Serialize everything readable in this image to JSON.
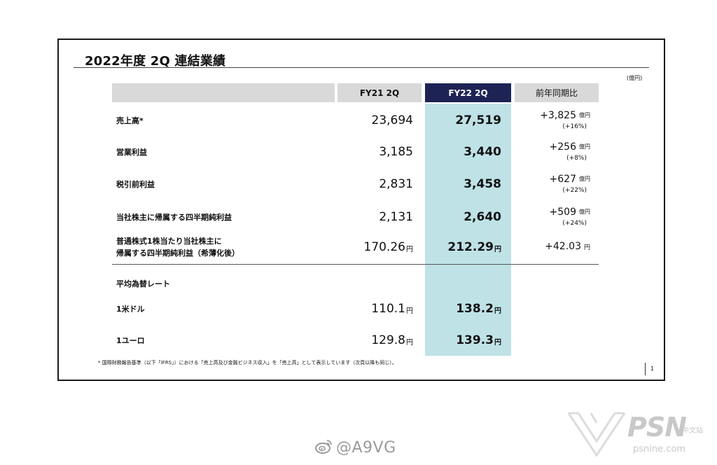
{
  "colors": {
    "frame": "#1a1a1a",
    "header_gray": "#d9d9d9",
    "header_navy": "#1d2455",
    "highlight_teal": "#bfe2e7",
    "watermark": "#c8c8c8"
  },
  "slide": {
    "title": "2022年度 2Q 連結業績",
    "unit": "(億円)",
    "footnote": "* 国際財務報告基準（以下「IFRS」）における「売上高及び金融ビジネス収入」を「売上高」として表示しています（次頁以降も同じ）。",
    "page_number": "1"
  },
  "table": {
    "headers": {
      "fy21": "FY21 2Q",
      "fy22": "FY22 2Q",
      "yoy": "前年同期比"
    },
    "rows": [
      {
        "label": "売上高*",
        "fy21": "23,694",
        "fy22": "27,519",
        "yoy": "+3,825",
        "yoy_unit": "億円",
        "yoy_pct": "(+16%)"
      },
      {
        "label": "営業利益",
        "fy21": "3,185",
        "fy22": "3,440",
        "yoy": "+256",
        "yoy_unit": "億円",
        "yoy_pct": "(+8%)"
      },
      {
        "label": "税引前利益",
        "fy21": "2,831",
        "fy22": "3,458",
        "yoy": "+627",
        "yoy_unit": "億円",
        "yoy_pct": "(+22%)"
      },
      {
        "label": "当社株主に帰属する四半期純利益",
        "fy21": "2,131",
        "fy22": "2,640",
        "yoy": "+509",
        "yoy_unit": "億円",
        "yoy_pct": "(+24%)"
      },
      {
        "label_line1": "普通株式1株当たり当社株主に",
        "label_line2": "帰属する四半期純利益（希薄化後）",
        "fy21": "170.26",
        "fy21_unit": "円",
        "fy22": "212.29",
        "fy22_unit": "円",
        "yoy": "+42.03",
        "yoy_unit": "円"
      }
    ],
    "fx_section_label": "平均為替レート",
    "fx_rows": [
      {
        "label": "1米ドル",
        "fy21": "110.1",
        "fy21_unit": "円",
        "fy22": "138.2",
        "fy22_unit": "円"
      },
      {
        "label": "1ユーロ",
        "fy21": "129.8",
        "fy21_unit": "円",
        "fy22": "139.3",
        "fy22_unit": "円"
      }
    ]
  },
  "watermarks": {
    "weibo_handle": "@A9VG",
    "psn_brand": "PSN",
    "psn_brand_cn": "中文站",
    "psn_url": "psnine.com"
  },
  "icons": {
    "weibo": "weibo-logo-icon",
    "psnine": "psnine-logo-icon"
  }
}
